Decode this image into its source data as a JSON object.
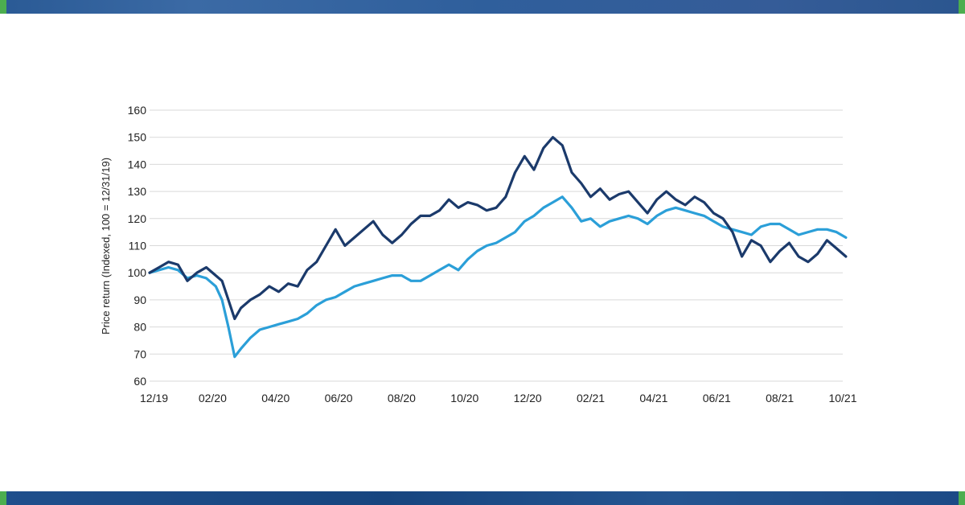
{
  "colors": {
    "series_dark": "#1b3a6b",
    "series_light": "#2b9fd8",
    "grid": "#d9d9d9",
    "brand_bar": "#2a5a95",
    "accent": "#4cae4f"
  },
  "chart_data": {
    "type": "line",
    "title": "",
    "xlabel": "",
    "ylabel": "Price return (Indexed, 100 = 12/31/19)",
    "ylim": [
      60,
      160
    ],
    "yticks": [
      "60",
      "70",
      "80",
      "90",
      "100",
      "110",
      "120",
      "130",
      "140",
      "150",
      "160"
    ],
    "xlim": [
      "12/19",
      "10/21"
    ],
    "xticks": [
      "12/19",
      "02/20",
      "04/20",
      "06/20",
      "08/20",
      "10/20",
      "12/20",
      "02/21",
      "04/21",
      "06/21",
      "08/21",
      "10/21"
    ],
    "grid": true,
    "legend": "none",
    "x_unit": "month index (0 = 12/19)",
    "series": [
      {
        "x": [
          0,
          0.3,
          0.6,
          0.9,
          1.2,
          1.5,
          1.8,
          2.1,
          2.3,
          2.5,
          2.7,
          2.9,
          3.2,
          3.5,
          3.8,
          4.1,
          4.4,
          4.7,
          5.0,
          5.3,
          5.6,
          5.9,
          6.2,
          6.5,
          6.8,
          7.1,
          7.4,
          7.7,
          8.0,
          8.3,
          8.6,
          8.9,
          9.2,
          9.5,
          9.8,
          10.1,
          10.4,
          10.7,
          11.0,
          11.3,
          11.6,
          11.9,
          12.2,
          12.5,
          12.8,
          13.1,
          13.4,
          13.7,
          14.0,
          14.3,
          14.6,
          14.9,
          15.2,
          15.5,
          15.8,
          16.1,
          16.4,
          16.7,
          17.0,
          17.3,
          17.6,
          17.9,
          18.2,
          18.5,
          18.8,
          19.1,
          19.4,
          19.7,
          20.0,
          20.3,
          20.6,
          20.9,
          21.2,
          21.5,
          21.8,
          22.1
        ],
        "values": [
          100,
          102,
          104,
          103,
          97,
          100,
          102,
          99,
          97,
          90,
          83,
          87,
          90,
          92,
          95,
          93,
          96,
          95,
          101,
          104,
          110,
          116,
          110,
          113,
          116,
          119,
          114,
          111,
          114,
          118,
          121,
          121,
          123,
          127,
          124,
          126,
          125,
          123,
          124,
          128,
          137,
          143,
          138,
          146,
          150,
          147,
          137,
          133,
          128,
          131,
          127,
          129,
          130,
          126,
          122,
          127,
          130,
          127,
          125,
          128,
          126,
          122,
          120,
          115,
          106,
          112,
          110,
          104,
          108,
          111,
          106,
          104,
          107,
          112,
          109,
          106
        ]
      },
      {
        "x": [
          0,
          0.3,
          0.6,
          0.9,
          1.2,
          1.5,
          1.8,
          2.1,
          2.3,
          2.5,
          2.7,
          2.9,
          3.2,
          3.5,
          3.8,
          4.1,
          4.4,
          4.7,
          5.0,
          5.3,
          5.6,
          5.9,
          6.2,
          6.5,
          6.8,
          7.1,
          7.4,
          7.7,
          8.0,
          8.3,
          8.6,
          8.9,
          9.2,
          9.5,
          9.8,
          10.1,
          10.4,
          10.7,
          11.0,
          11.3,
          11.6,
          11.9,
          12.2,
          12.5,
          12.8,
          13.1,
          13.4,
          13.7,
          14.0,
          14.3,
          14.6,
          14.9,
          15.2,
          15.5,
          15.8,
          16.1,
          16.4,
          16.7,
          17.0,
          17.3,
          17.6,
          17.9,
          18.2,
          18.5,
          18.8,
          19.1,
          19.4,
          19.7,
          20.0,
          20.3,
          20.6,
          20.9,
          21.2,
          21.5,
          21.8,
          22.1
        ],
        "values": [
          100,
          101,
          102,
          101,
          98,
          99,
          98,
          95,
          90,
          80,
          69,
          72,
          76,
          79,
          80,
          81,
          82,
          83,
          85,
          88,
          90,
          91,
          93,
          95,
          96,
          97,
          98,
          99,
          99,
          97,
          97,
          99,
          101,
          103,
          101,
          105,
          108,
          110,
          111,
          113,
          115,
          119,
          121,
          124,
          126,
          128,
          124,
          119,
          120,
          117,
          119,
          120,
          121,
          120,
          118,
          121,
          123,
          124,
          123,
          122,
          121,
          119,
          117,
          116,
          115,
          114,
          117,
          118,
          118,
          116,
          114,
          115,
          116,
          116,
          115,
          113
        ]
      }
    ]
  }
}
